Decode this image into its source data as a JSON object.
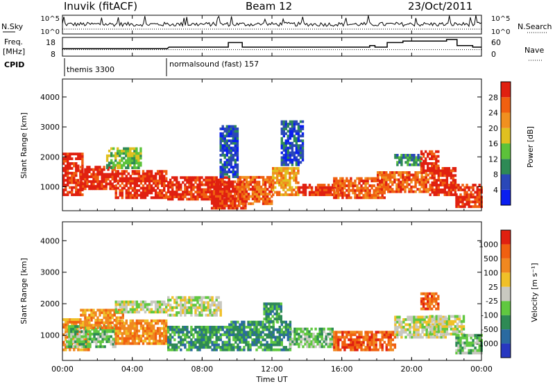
{
  "header": {
    "station": "Inuvik (fitACF)",
    "beam": "Beam 12",
    "date": "23/Oct/2011"
  },
  "nsky_panel": {
    "left_label": "N.Sky",
    "right_label": "N.Search",
    "left_ticks": [
      "10^5",
      "10^0"
    ],
    "right_ticks": [
      "10^5",
      "10^0"
    ]
  },
  "freq_panel": {
    "left_label_1": "Freq.",
    "left_label_2": "[MHz]",
    "right_label": "Nave",
    "left_ticks": [
      "18",
      "8"
    ],
    "right_ticks": [
      "60",
      "0"
    ],
    "freq_mhz": [
      [
        0,
        12
      ],
      [
        6.0,
        12
      ],
      [
        6.1,
        13
      ],
      [
        9.5,
        13
      ],
      [
        9.5,
        16
      ],
      [
        10.3,
        16
      ],
      [
        10.3,
        13
      ],
      [
        17.6,
        13
      ],
      [
        17.6,
        14
      ],
      [
        17.9,
        14
      ],
      [
        17.9,
        13
      ],
      [
        18.6,
        13
      ],
      [
        18.6,
        16
      ],
      [
        19.5,
        16
      ],
      [
        19.5,
        17
      ],
      [
        22.0,
        17
      ],
      [
        22.0,
        18
      ],
      [
        22.6,
        18
      ],
      [
        22.6,
        14
      ],
      [
        23.5,
        14
      ],
      [
        23.5,
        13
      ],
      [
        24,
        13
      ]
    ],
    "nave_reference": 20
  },
  "cpid": {
    "label": "CPID",
    "programs": [
      {
        "name": "themis 3300",
        "start_hour": 0
      },
      {
        "name": "normalsound (fast) 157",
        "start_hour": 5.9
      }
    ]
  },
  "chart_data": [
    {
      "type": "heatmap",
      "parameter": "power",
      "ylabel": "Slant Range [km]",
      "xlabel": "",
      "ylim": [
        200,
        4600
      ],
      "yticks": [
        1000,
        2000,
        3000,
        4000
      ],
      "xlim": [
        0,
        24
      ],
      "colorbar": {
        "label": "Power [dB]",
        "ticks": [
          "4",
          "8",
          "12",
          "16",
          "20",
          "24",
          "28"
        ],
        "colors": [
          "#0a1ef0",
          "#2a48b8",
          "#2e8a55",
          "#5cc23a",
          "#e0c020",
          "#f09020",
          "#f06010",
          "#e02010"
        ]
      },
      "regions": [
        {
          "t0": 0.0,
          "t1": 1.2,
          "r0": 700,
          "r1": 2100,
          "level": 7
        },
        {
          "t0": 1.0,
          "t1": 3.0,
          "r0": 900,
          "r1": 1700,
          "level": 7
        },
        {
          "t0": 2.5,
          "t1": 4.5,
          "r0": 1600,
          "r1": 2300,
          "level": 3
        },
        {
          "t0": 3.0,
          "t1": 6.0,
          "r0": 600,
          "r1": 1500,
          "level": 7
        },
        {
          "t0": 6.0,
          "t1": 9.5,
          "r0": 550,
          "r1": 1350,
          "level": 7
        },
        {
          "t0": 8.5,
          "t1": 10.5,
          "r0": 250,
          "r1": 1150,
          "level": 7
        },
        {
          "t0": 10.0,
          "t1": 12.0,
          "r0": 400,
          "r1": 1300,
          "level": 6
        },
        {
          "t0": 9.0,
          "t1": 10.0,
          "r0": 1300,
          "r1": 3000,
          "level": 1
        },
        {
          "t0": 12.0,
          "t1": 13.5,
          "r0": 700,
          "r1": 1600,
          "level": 5
        },
        {
          "t0": 12.5,
          "t1": 13.8,
          "r0": 1700,
          "r1": 3200,
          "level": 1
        },
        {
          "t0": 13.5,
          "t1": 16.0,
          "r0": 700,
          "r1": 1100,
          "level": 7
        },
        {
          "t0": 15.5,
          "t1": 18.5,
          "r0": 600,
          "r1": 1250,
          "level": 6
        },
        {
          "t0": 18.0,
          "t1": 21.0,
          "r0": 800,
          "r1": 1500,
          "level": 6
        },
        {
          "t0": 19.0,
          "t1": 20.5,
          "r0": 1700,
          "r1": 2100,
          "level": 2
        },
        {
          "t0": 20.5,
          "t1": 21.5,
          "r0": 1500,
          "r1": 2200,
          "level": 7
        },
        {
          "t0": 21.0,
          "t1": 22.5,
          "r0": 700,
          "r1": 1600,
          "level": 7
        },
        {
          "t0": 22.5,
          "t1": 24.0,
          "r0": 300,
          "r1": 1100,
          "level": 7
        }
      ]
    },
    {
      "type": "heatmap",
      "parameter": "velocity",
      "ylabel": "Slant Range [km]",
      "xlabel": "Time UT",
      "ylim": [
        200,
        4600
      ],
      "yticks": [
        1000,
        2000,
        3000,
        4000
      ],
      "xlim": [
        0,
        24
      ],
      "xticks": [
        "00:00",
        "04:00",
        "08:00",
        "12:00",
        "16:00",
        "20:00",
        "00:00"
      ],
      "colorbar": {
        "label": "Velocity [m s⁻¹]",
        "ticks": [
          "1000",
          "500",
          "100",
          "25",
          "-25",
          "-100",
          "-500",
          "-1000"
        ],
        "colors": [
          "#2838c0",
          "#2a6aa0",
          "#2e8a55",
          "#60c840",
          "#c8c8c0",
          "#f0c028",
          "#f08820",
          "#f06010",
          "#e02010"
        ]
      },
      "regions": [
        {
          "t0": 0.0,
          "t1": 1.5,
          "r0": 500,
          "r1": 1500,
          "level": 6
        },
        {
          "t0": 0.2,
          "t1": 3.0,
          "r0": 600,
          "r1": 1300,
          "level": 3
        },
        {
          "t0": 1.0,
          "t1": 3.5,
          "r0": 1200,
          "r1": 1800,
          "level": 6
        },
        {
          "t0": 3.0,
          "t1": 6.0,
          "r0": 1700,
          "r1": 2100,
          "level": 4
        },
        {
          "t0": 3.0,
          "t1": 6.0,
          "r0": 700,
          "r1": 1500,
          "level": 6
        },
        {
          "t0": 6.0,
          "t1": 9.5,
          "r0": 500,
          "r1": 1300,
          "level": 2
        },
        {
          "t0": 6.0,
          "t1": 9.0,
          "r0": 1600,
          "r1": 2200,
          "level": 4
        },
        {
          "t0": 9.5,
          "t1": 13.0,
          "r0": 500,
          "r1": 1400,
          "level": 2
        },
        {
          "t0": 11.5,
          "t1": 12.5,
          "r0": 1400,
          "r1": 2000,
          "level": 2
        },
        {
          "t0": 13.0,
          "t1": 15.5,
          "r0": 600,
          "r1": 1200,
          "level": 3
        },
        {
          "t0": 15.5,
          "t1": 19.0,
          "r0": 500,
          "r1": 1100,
          "level": 7
        },
        {
          "t0": 19.0,
          "t1": 22.0,
          "r0": 900,
          "r1": 1600,
          "level": 4
        },
        {
          "t0": 20.5,
          "t1": 21.5,
          "r0": 1800,
          "r1": 2300,
          "level": 7
        },
        {
          "t0": 21.0,
          "t1": 23.0,
          "r0": 1000,
          "r1": 1600,
          "level": 4
        },
        {
          "t0": 22.5,
          "t1": 24.0,
          "r0": 400,
          "r1": 1000,
          "level": 3
        }
      ]
    }
  ]
}
